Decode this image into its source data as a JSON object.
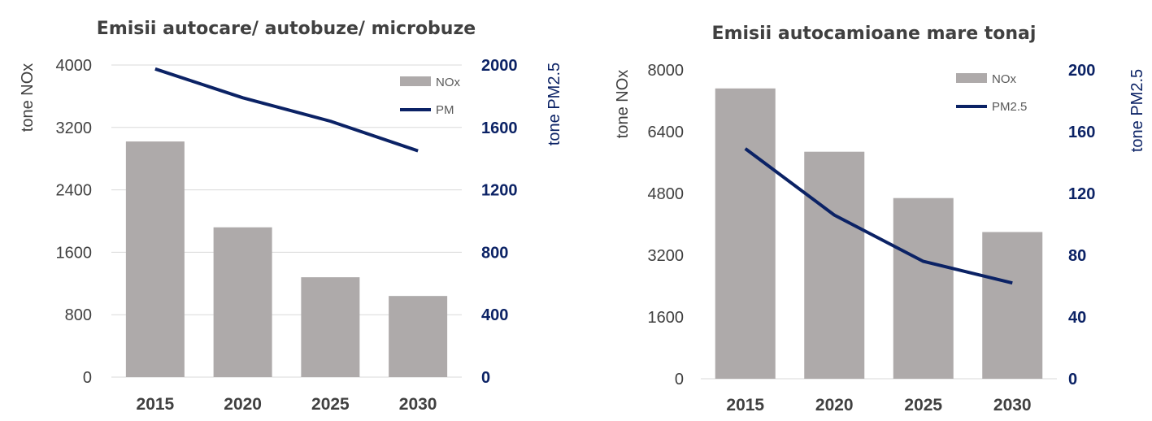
{
  "chart_data": [
    {
      "type": "bar",
      "title": "Emisii autocare/ autobuze/ microbuze",
      "categories": [
        "2015",
        "2020",
        "2025",
        "2030"
      ],
      "ylabel": "tone NOx",
      "ylabel_right": "tone PM2.5",
      "ylim": [
        0,
        4000
      ],
      "ylim_right": [
        0,
        2000
      ],
      "yticks": [
        "0",
        "800",
        "1600",
        "2400",
        "3200",
        "4000"
      ],
      "yticks_right": [
        "0",
        "400",
        "800",
        "1200",
        "1600",
        "2000"
      ],
      "grid": true,
      "legend_position": "top-right",
      "series": [
        {
          "name": "NOx",
          "type": "bar",
          "axis": "left",
          "color": "#aeaaaa",
          "values": [
            3020,
            1920,
            1280,
            1040
          ]
        },
        {
          "name": "PM",
          "type": "line",
          "axis": "right",
          "color": "#0b2265",
          "values": [
            1975,
            1790,
            1640,
            1450
          ]
        }
      ]
    },
    {
      "type": "bar",
      "title": "Emisii autocamioane mare tonaj",
      "categories": [
        "2015",
        "2020",
        "2025",
        "2030"
      ],
      "ylabel": "tone NOx",
      "ylabel_right": "tone PM2.5",
      "ylim": [
        0,
        8000
      ],
      "ylim_right": [
        0,
        200
      ],
      "yticks": [
        "0",
        "1600",
        "3200",
        "4800",
        "6400",
        "8000"
      ],
      "yticks_right": [
        "0",
        "40",
        "80",
        "120",
        "160",
        "200"
      ],
      "grid": false,
      "legend_position": "top-right",
      "series": [
        {
          "name": "NOx",
          "type": "bar",
          "axis": "left",
          "color": "#aeaaaa",
          "values": [
            7520,
            5880,
            4680,
            3800
          ]
        },
        {
          "name": "PM2.5",
          "type": "line",
          "axis": "right",
          "color": "#0b2265",
          "values": [
            149,
            106,
            76,
            62
          ]
        }
      ]
    }
  ]
}
